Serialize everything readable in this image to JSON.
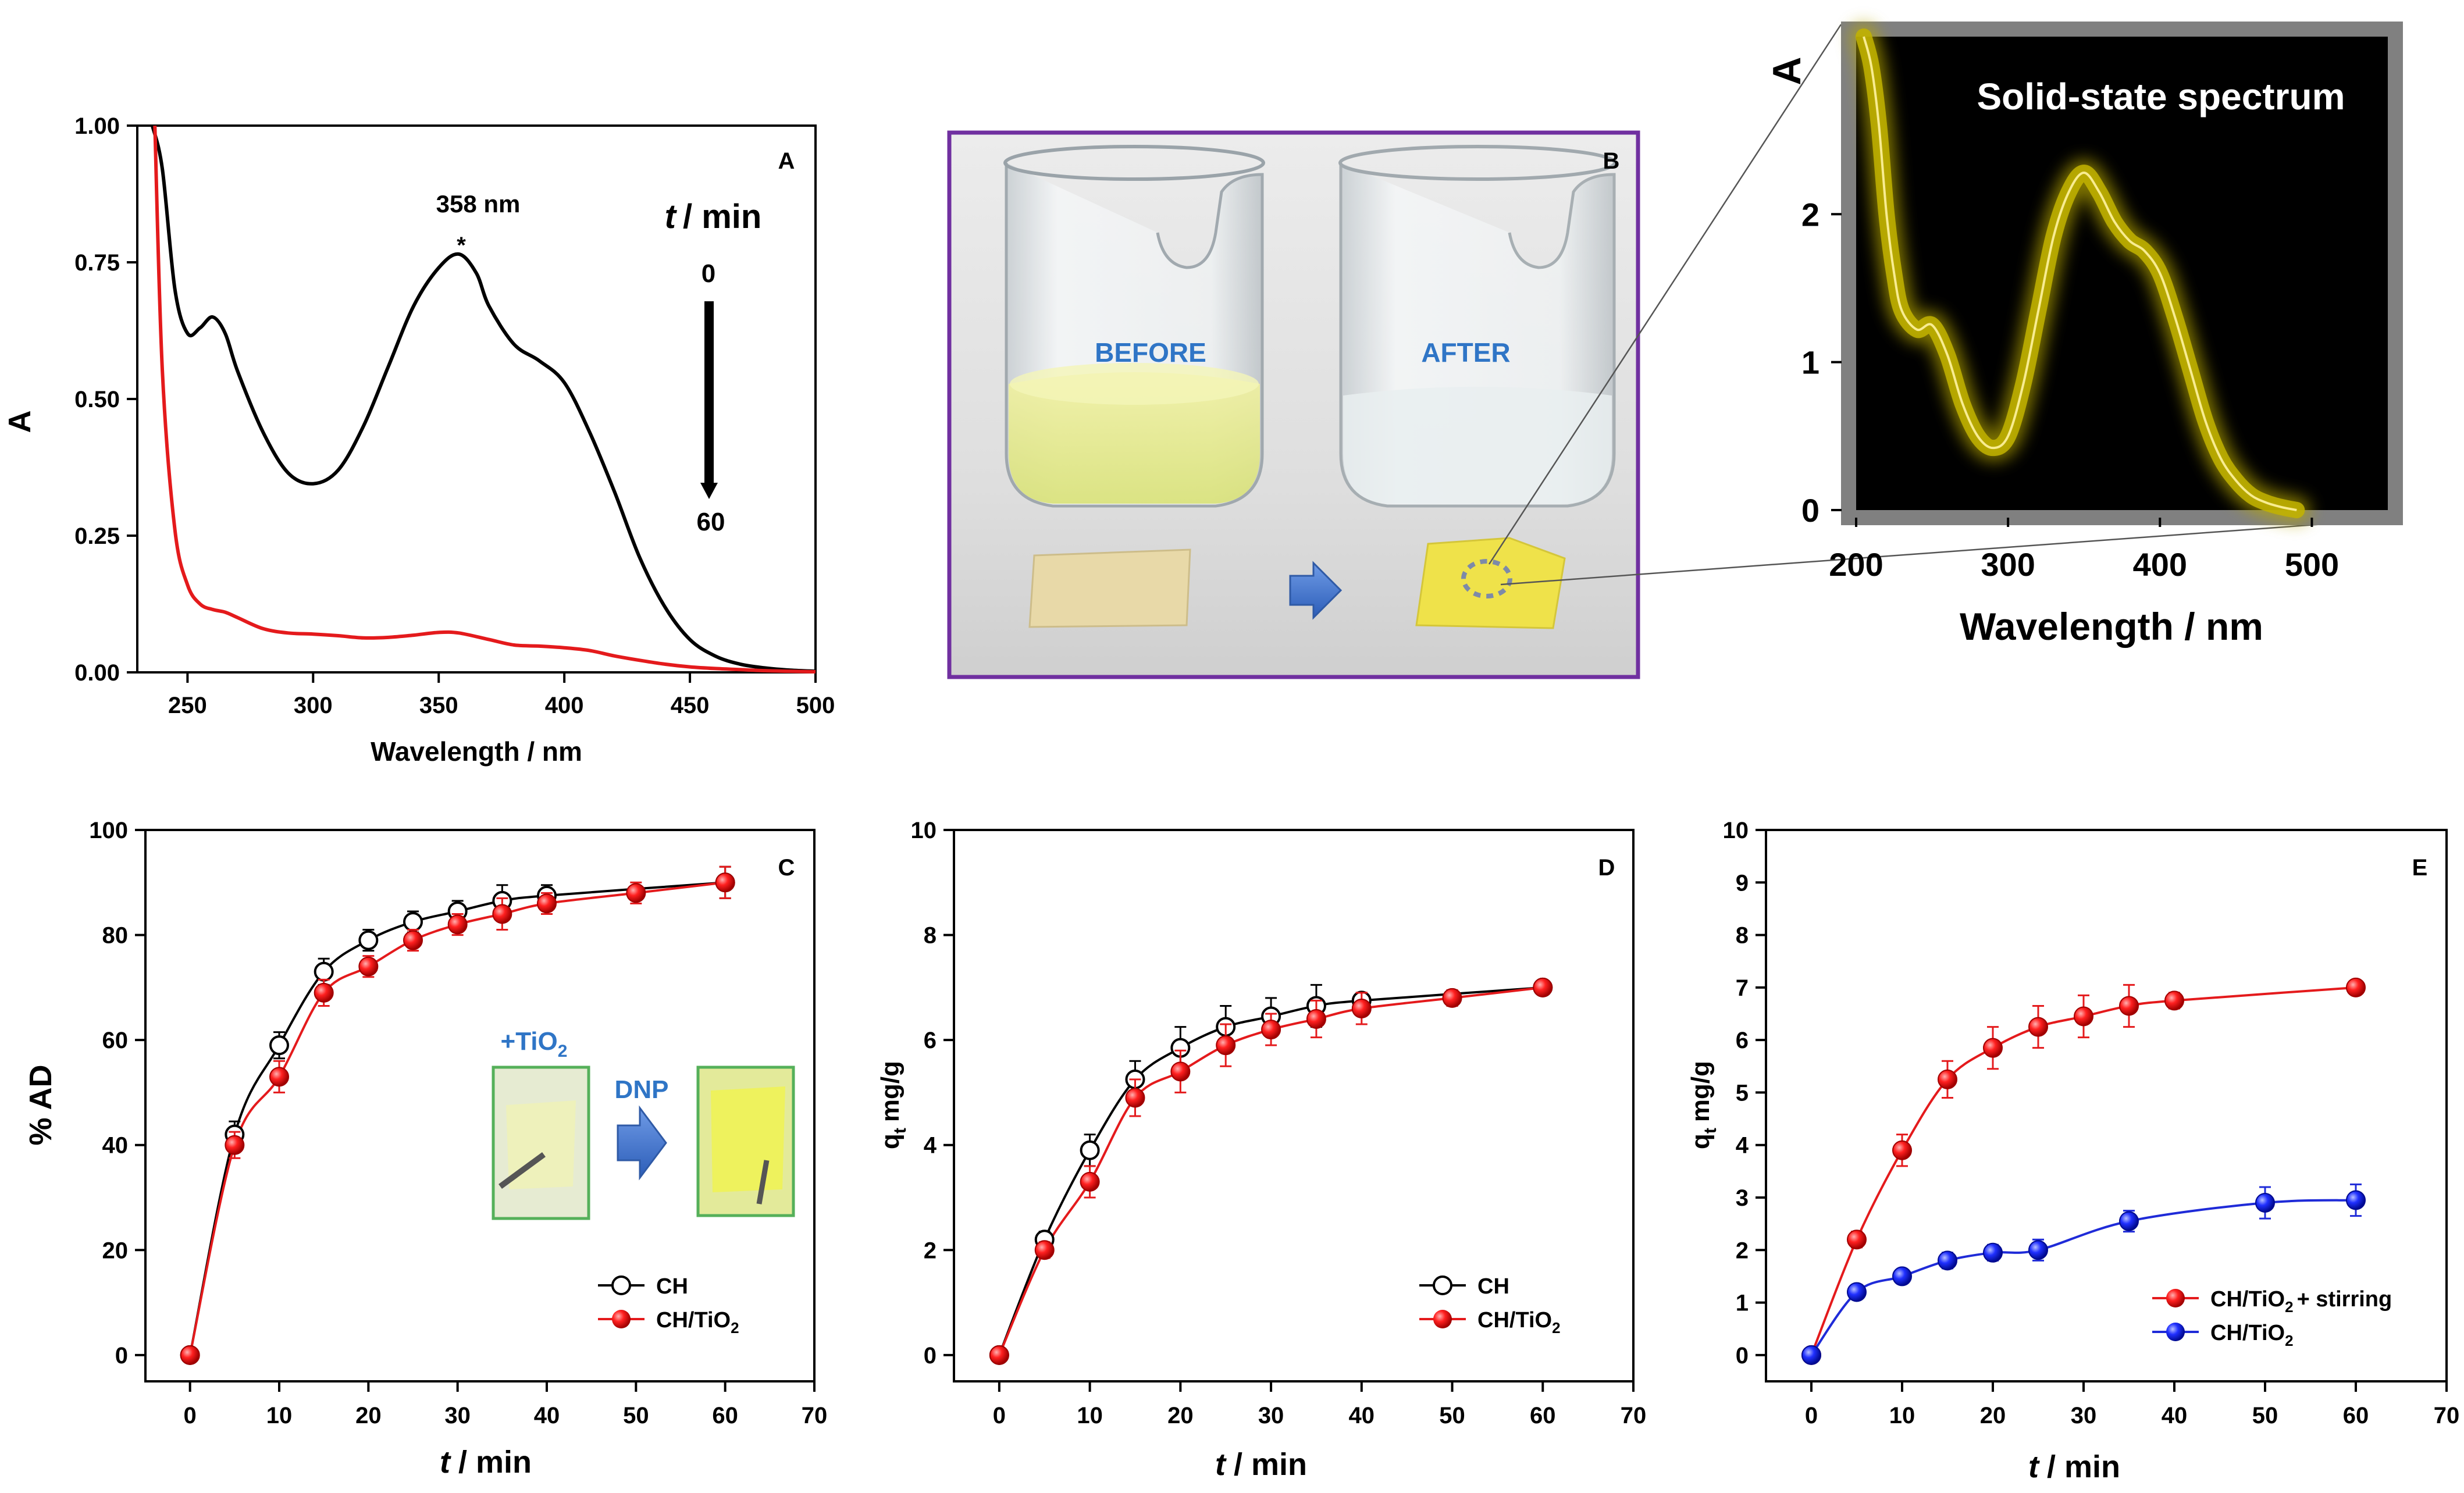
{
  "chart_data": [
    {
      "panel": "A",
      "type": "line",
      "xlabel": "Wavelength / nm",
      "ylabel": "A",
      "xlim": [
        230,
        500
      ],
      "ylim": [
        0,
        1.0
      ],
      "xticks": [
        "250",
        "300",
        "350",
        "400",
        "450",
        "500"
      ],
      "yticks": [
        "0.00",
        "0.25",
        "0.50",
        "0.75",
        "1.00"
      ],
      "peak_label": "358 nm",
      "peak_marker": "*",
      "time_label_t": "t",
      "time_label_unit": "/ min",
      "time_start": "0",
      "time_end": "60",
      "series": [
        {
          "name": "t = 0 min",
          "color": "#000000",
          "x": [
            236,
            240,
            245,
            250,
            255,
            260,
            265,
            270,
            280,
            290,
            300,
            310,
            320,
            330,
            340,
            350,
            358,
            365,
            370,
            380,
            390,
            400,
            410,
            420,
            430,
            440,
            450,
            460,
            470,
            480,
            490,
            500
          ],
          "y": [
            1.0,
            0.92,
            0.7,
            0.62,
            0.63,
            0.65,
            0.62,
            0.55,
            0.44,
            0.365,
            0.345,
            0.37,
            0.45,
            0.56,
            0.67,
            0.74,
            0.765,
            0.73,
            0.67,
            0.6,
            0.57,
            0.53,
            0.44,
            0.33,
            0.21,
            0.12,
            0.06,
            0.03,
            0.015,
            0.008,
            0.004,
            0.002
          ]
        },
        {
          "name": "t = 60 min",
          "color": "#e41a1c",
          "x": [
            237,
            240,
            245,
            250,
            255,
            260,
            265,
            270,
            280,
            290,
            300,
            310,
            320,
            330,
            340,
            350,
            358,
            370,
            380,
            390,
            400,
            410,
            420,
            430,
            440,
            450,
            460,
            470,
            480,
            490,
            500
          ],
          "y": [
            1.0,
            0.55,
            0.26,
            0.16,
            0.125,
            0.115,
            0.11,
            0.1,
            0.08,
            0.072,
            0.07,
            0.067,
            0.063,
            0.064,
            0.068,
            0.073,
            0.072,
            0.06,
            0.05,
            0.048,
            0.045,
            0.04,
            0.03,
            0.022,
            0.015,
            0.01,
            0.007,
            0.005,
            0.003,
            0.002,
            0.001
          ]
        }
      ]
    },
    {
      "panel": "B",
      "type": "photo",
      "label_before": "BEFORE",
      "label_after": "AFTER"
    },
    {
      "panel": "inset",
      "type": "line",
      "title": "Solid-state spectrum",
      "xlabel": "Wavelength / nm",
      "ylabel": "A",
      "xlim": [
        200,
        550
      ],
      "ylim": [
        0,
        3.2
      ],
      "xticks": [
        "200",
        "300",
        "400",
        "500"
      ],
      "yticks": [
        "0",
        "1",
        "2"
      ],
      "series": [
        {
          "name": "solid-state",
          "color": "#d4c000",
          "x": [
            205,
            210,
            215,
            220,
            225,
            230,
            240,
            250,
            260,
            270,
            280,
            290,
            300,
            310,
            320,
            330,
            340,
            350,
            360,
            370,
            380,
            390,
            400,
            410,
            420,
            430,
            440,
            450,
            460,
            470,
            480,
            490
          ],
          "y": [
            3.2,
            3.0,
            2.6,
            2.0,
            1.6,
            1.35,
            1.22,
            1.25,
            1.05,
            0.72,
            0.5,
            0.42,
            0.5,
            0.85,
            1.35,
            1.85,
            2.15,
            2.28,
            2.15,
            1.95,
            1.82,
            1.75,
            1.6,
            1.3,
            0.95,
            0.6,
            0.35,
            0.2,
            0.1,
            0.05,
            0.02,
            0.0
          ]
        }
      ]
    },
    {
      "panel": "C",
      "type": "line",
      "xlabel_t": "t",
      "xlabel_unit": "/ min",
      "ylabel": "% AD",
      "xlim": [
        -5,
        70
      ],
      "ylim": [
        -5,
        100
      ],
      "xticks": [
        0,
        10,
        20,
        30,
        40,
        50,
        60,
        70
      ],
      "yticks": [
        0,
        20,
        40,
        60,
        80,
        100
      ],
      "inset_label_1": "+TiO",
      "inset_label_1_sub": "2",
      "inset_label_2": "DNP",
      "series": [
        {
          "name": "CH",
          "color": "#000000",
          "marker": "open",
          "x": [
            0,
            5,
            10,
            15,
            20,
            25,
            30,
            35,
            40,
            60
          ],
          "y": [
            0,
            42,
            59,
            73,
            79,
            82.5,
            84.5,
            86.5,
            87.5,
            90
          ],
          "err": [
            0,
            2.5,
            2.5,
            2.5,
            2,
            2,
            2,
            3,
            2,
            3
          ]
        },
        {
          "name": "CH/TiO",
          "sub": "2",
          "color": "#e41a1c",
          "marker": "filled",
          "x": [
            0,
            5,
            10,
            15,
            20,
            25,
            30,
            35,
            40,
            50,
            60
          ],
          "y": [
            0,
            40,
            53,
            69,
            74,
            79,
            82,
            84,
            86,
            88,
            90
          ],
          "err": [
            0,
            2.5,
            3,
            2.5,
            2,
            2,
            2,
            3,
            2,
            2,
            3
          ]
        }
      ]
    },
    {
      "panel": "D",
      "type": "line",
      "xlabel_t": "t",
      "xlabel_unit": "/ min",
      "ylabel_q": "q",
      "ylabel_sub": "t",
      "ylabel_unit": "mg/g",
      "xlim": [
        -5,
        70
      ],
      "ylim": [
        -0.5,
        10
      ],
      "xticks": [
        0,
        10,
        20,
        30,
        40,
        50,
        60,
        70
      ],
      "yticks": [
        0,
        2,
        4,
        6,
        8,
        10
      ],
      "series": [
        {
          "name": "CH",
          "color": "#000000",
          "marker": "open",
          "x": [
            0,
            5,
            10,
            15,
            20,
            25,
            30,
            35,
            40,
            60
          ],
          "y": [
            0,
            2.2,
            3.9,
            5.25,
            5.85,
            6.25,
            6.45,
            6.65,
            6.75,
            7.0
          ],
          "err": [
            0,
            0.15,
            0.3,
            0.35,
            0.4,
            0.4,
            0.35,
            0.4,
            0.15,
            0.1
          ]
        },
        {
          "name": "CH/TiO",
          "sub": "2",
          "color": "#e41a1c",
          "marker": "filled",
          "x": [
            0,
            5,
            10,
            15,
            20,
            25,
            30,
            35,
            40,
            50,
            60
          ],
          "y": [
            0,
            2.0,
            3.3,
            4.9,
            5.4,
            5.9,
            6.2,
            6.4,
            6.6,
            6.8,
            7.0
          ],
          "err": [
            0,
            0.15,
            0.3,
            0.35,
            0.4,
            0.4,
            0.3,
            0.35,
            0.3,
            0.15,
            0.1
          ]
        }
      ]
    },
    {
      "panel": "E",
      "type": "line",
      "xlabel_t": "t",
      "xlabel_unit": "/ min",
      "ylabel_q": "q",
      "ylabel_sub": "t",
      "ylabel_unit": "mg/g",
      "xlim": [
        -5,
        70
      ],
      "ylim": [
        -0.5,
        10
      ],
      "xticks": [
        0,
        10,
        20,
        30,
        40,
        50,
        60,
        70
      ],
      "yticks": [
        0,
        1,
        2,
        3,
        4,
        5,
        6,
        7,
        8,
        9,
        10
      ],
      "series": [
        {
          "name": "CH/TiO",
          "sub": "2",
          "suffix": "+ stirring",
          "color": "#e41a1c",
          "marker": "filled",
          "x": [
            0,
            5,
            10,
            15,
            20,
            25,
            30,
            35,
            40,
            60
          ],
          "y": [
            0,
            2.2,
            3.9,
            5.25,
            5.85,
            6.25,
            6.45,
            6.65,
            6.75,
            7.0
          ],
          "err": [
            0,
            0.15,
            0.3,
            0.35,
            0.4,
            0.4,
            0.4,
            0.4,
            0.15,
            0.1
          ]
        },
        {
          "name": "CH/TiO",
          "sub": "2",
          "suffix": "",
          "color": "#1f2bd8",
          "marker": "filled",
          "x": [
            0,
            5,
            10,
            15,
            20,
            25,
            35,
            50,
            60
          ],
          "y": [
            0,
            1.2,
            1.5,
            1.8,
            1.95,
            2.0,
            2.55,
            2.9,
            2.95
          ],
          "err": [
            0,
            0.1,
            0.1,
            0.15,
            0.15,
            0.2,
            0.2,
            0.3,
            0.3
          ]
        }
      ]
    }
  ],
  "panel_letters": {
    "A": "A",
    "B": "B",
    "C": "C",
    "D": "D",
    "E": "E"
  }
}
